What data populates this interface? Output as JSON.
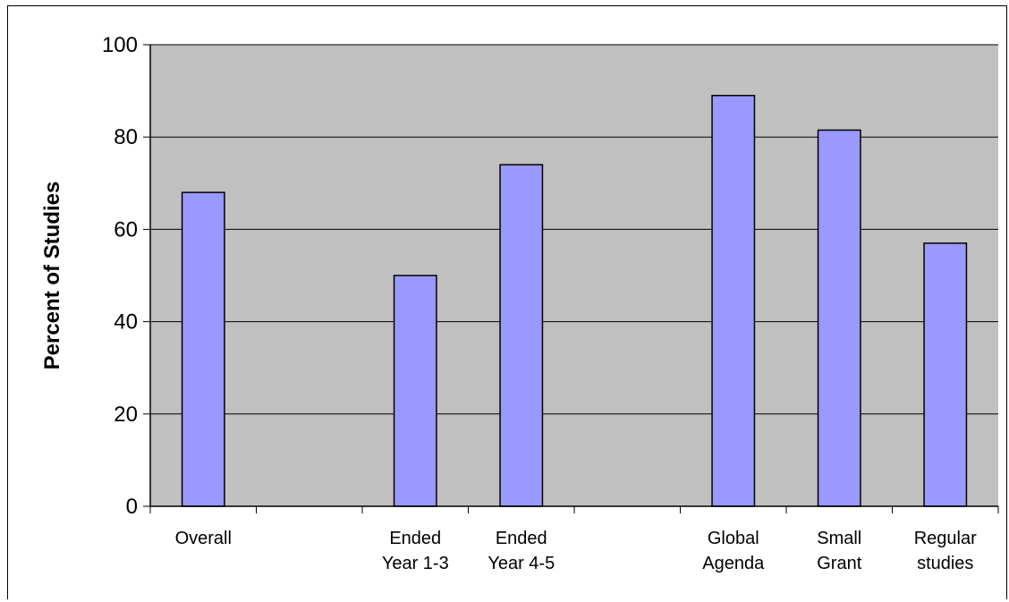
{
  "chart_data": {
    "type": "bar",
    "title": "",
    "xlabel": "",
    "ylabel": "Percent of Studies",
    "ylim": [
      0,
      100
    ],
    "yticks": [
      0,
      20,
      40,
      60,
      80,
      100
    ],
    "grid": true,
    "legend": "none",
    "colors": {
      "bar_fill": "#9999ff",
      "bar_stroke": "#000000",
      "plot_background": "#c0c0c0",
      "gridline": "#000000"
    },
    "categories": [
      [
        "Overall"
      ],
      [],
      [
        "Ended",
        "Year 1-3"
      ],
      [
        "Ended",
        "Year 4-5"
      ],
      [],
      [
        "Global",
        "Agenda"
      ],
      [
        "Small",
        "Grant"
      ],
      [
        "Regular",
        "studies"
      ]
    ],
    "values": [
      68,
      null,
      50,
      74,
      null,
      89,
      81.5,
      57
    ]
  }
}
